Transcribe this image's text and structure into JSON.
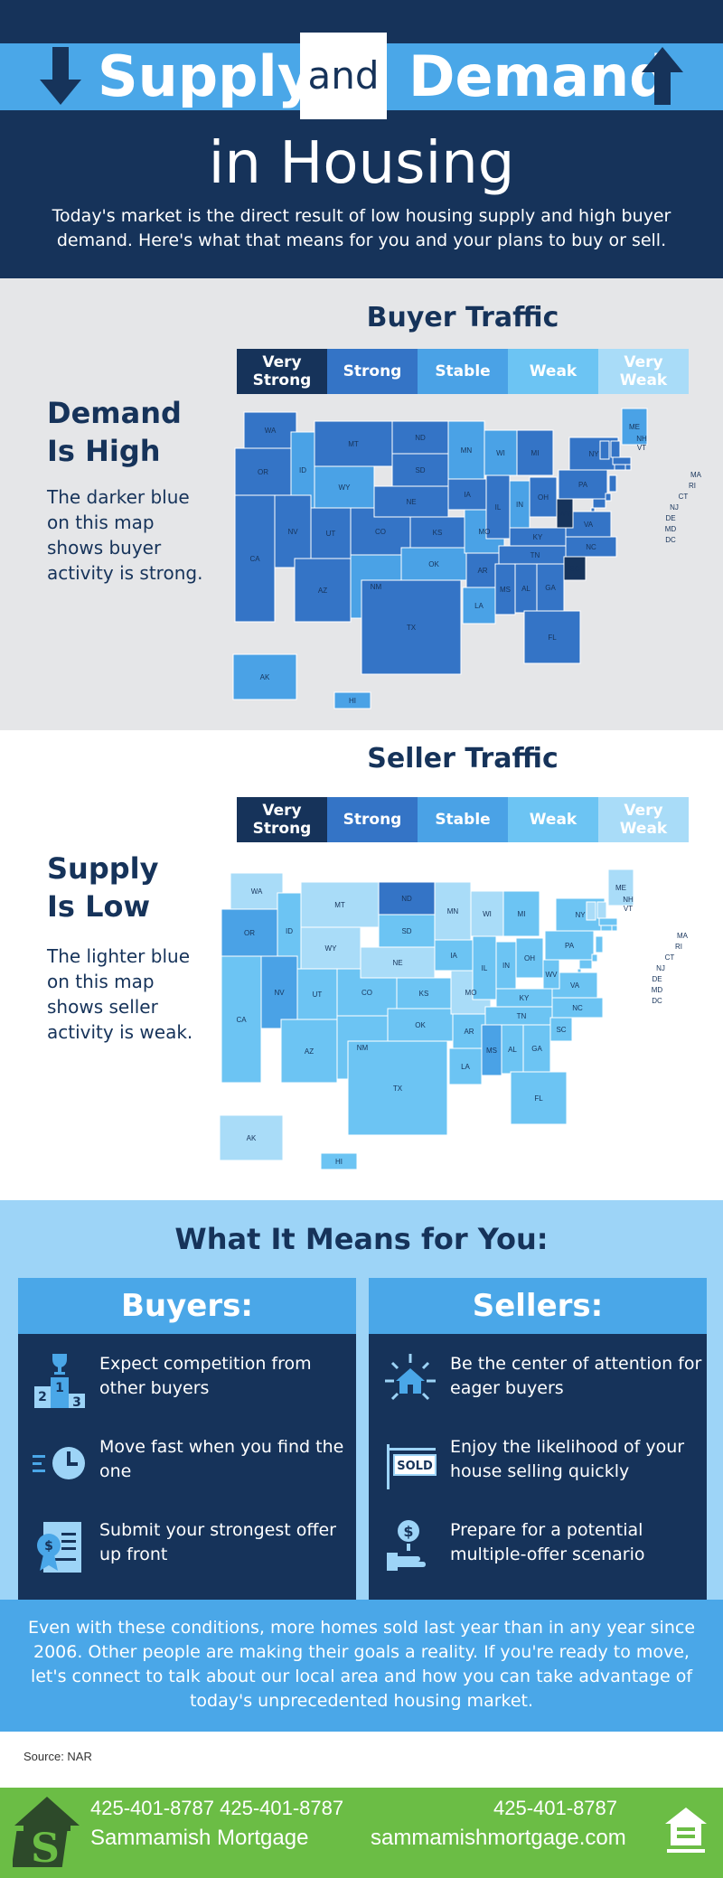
{
  "header": {
    "title_word1": "Supply",
    "title_and": "and",
    "title_word2": "Demand",
    "title_line2": "in Housing",
    "intro": "Today's market is the direct result of low housing supply and high buyer demand. Here's what that means for you and your plans to buy or sell."
  },
  "legend_labels": [
    "Very Strong",
    "Strong",
    "Stable",
    "Weak",
    "Very Weak"
  ],
  "colors": {
    "very_strong": "#16335a",
    "strong": "#3474c6",
    "stable": "#4aa2e6",
    "weak": "#6cc4f3",
    "very_weak": "#a9dcf8",
    "navy": "#16335a",
    "accent": "#4aa7e8",
    "green": "#6bbd45"
  },
  "buyer_section": {
    "title": "Buyer Traffic",
    "heading_line1": "Demand",
    "heading_line2": "Is High",
    "text": "The darker blue on this map shows buyer activity is strong."
  },
  "seller_section": {
    "title": "Seller Traffic",
    "heading_line1": "Supply",
    "heading_line2": "Is Low",
    "text": "The lighter blue on this map shows seller activity is weak."
  },
  "state_labels": [
    "WA",
    "OR",
    "CA",
    "ID",
    "NV",
    "MT",
    "WY",
    "UT",
    "AZ",
    "CO",
    "NM",
    "ND",
    "SD",
    "NE",
    "KS",
    "OK",
    "TX",
    "MN",
    "IA",
    "MO",
    "AR",
    "LA",
    "WI",
    "IL",
    "MI",
    "IN",
    "OH",
    "KY",
    "TN",
    "MS",
    "AL",
    "GA",
    "FL",
    "SC",
    "NC",
    "VA",
    "WV",
    "PA",
    "NY",
    "ME",
    "NH",
    "VT",
    "MA",
    "RI",
    "CT",
    "NJ",
    "DE",
    "MD",
    "DC",
    "AK",
    "HI"
  ],
  "means": {
    "title": "What It Means for You:",
    "buyers": {
      "heading": "Buyers:",
      "items": [
        {
          "text": "Expect competition from other buyers",
          "icon": "podium-icon"
        },
        {
          "text": "Move fast when you find the one",
          "icon": "clock-icon"
        },
        {
          "text": "Submit your strongest offer up front",
          "icon": "certificate-icon"
        }
      ]
    },
    "sellers": {
      "heading": "Sellers:",
      "items": [
        {
          "text": "Be the center of attention for eager buyers",
          "icon": "house-spotlight-icon"
        },
        {
          "text": "Enjoy the likelihood of your house selling quickly",
          "icon": "sold-sign-icon",
          "sign_text": "SOLD"
        },
        {
          "text": "Prepare for a potential multiple-offer scenario",
          "icon": "hand-money-icon"
        }
      ]
    },
    "podium_numbers": [
      "1",
      "2",
      "3"
    ],
    "conclusion": "Even with these conditions, more homes sold last year than in any year since 2006. Other people are making their goals a reality. If you're ready to move, let's connect to talk about our local area and how you can take advantage of today's unprecedented housing market."
  },
  "source": "Source: NAR",
  "footer": {
    "phone1": "425-401-8787 425-401-8787",
    "phone2": "425-401-8787",
    "company": "Sammamish Mortgage",
    "website": "sammamishmortgage.com",
    "logo_letter": "S"
  }
}
